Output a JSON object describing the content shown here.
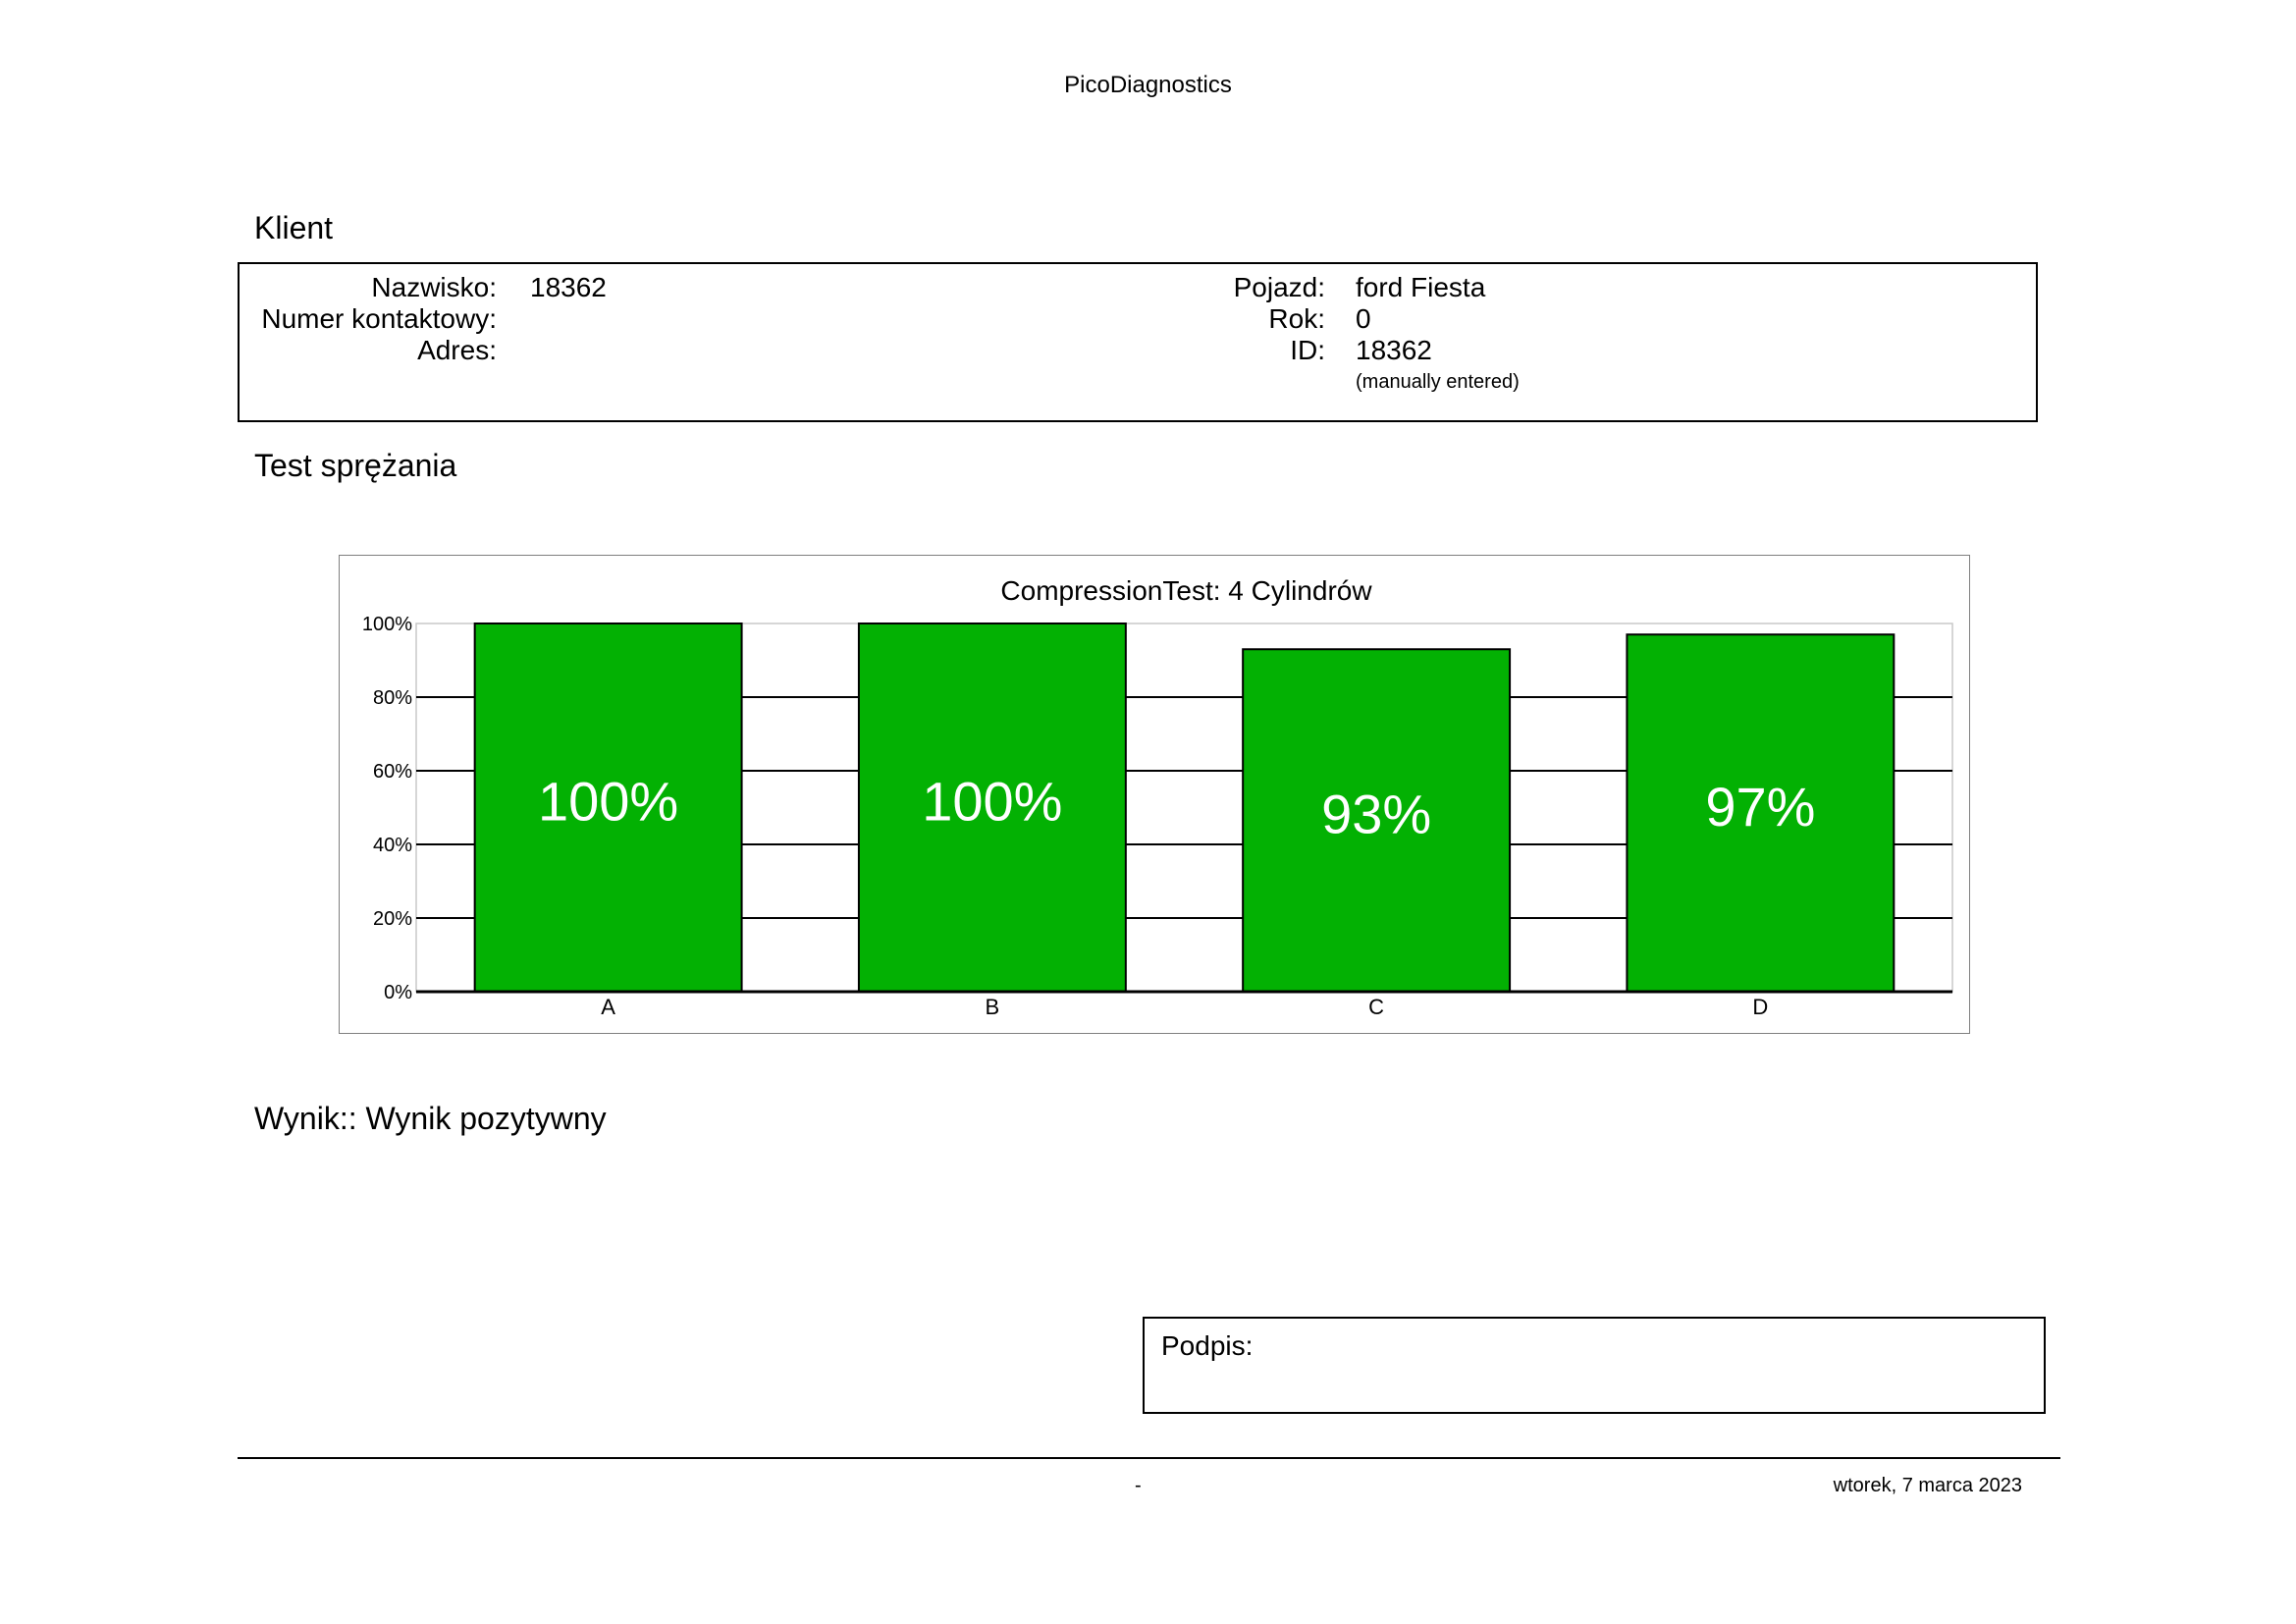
{
  "header": {
    "title": "PicoDiagnostics"
  },
  "client": {
    "heading": "Klient",
    "left_fields": [
      {
        "label": "Nazwisko:",
        "value": "18362"
      },
      {
        "label": "Numer kontaktowy:",
        "value": ""
      },
      {
        "label": "Adres:",
        "value": ""
      }
    ],
    "right_fields": [
      {
        "label": "Pojazd:",
        "value": "ford Fiesta"
      },
      {
        "label": "Rok:",
        "value": "0"
      },
      {
        "label": "ID:",
        "value": "18362"
      }
    ],
    "id_note": "(manually entered)"
  },
  "test": {
    "heading": "Test sprężania"
  },
  "chart_data": {
    "type": "bar",
    "title": "CompressionTest: 4 Cylindrów",
    "xlabel": "",
    "ylabel": "",
    "categories": [
      "A",
      "B",
      "C",
      "D"
    ],
    "values": [
      100,
      100,
      93,
      97
    ],
    "data_labels": [
      "100%",
      "100%",
      "93%",
      "97%"
    ],
    "ylim": [
      0,
      100
    ],
    "yticks": [
      0,
      20,
      40,
      60,
      80,
      100
    ],
    "ytick_labels": [
      "0%",
      "20%",
      "40%",
      "60%",
      "80%",
      "100%"
    ],
    "grid": true,
    "bar_color": "#03b103",
    "label_color": "#ffffff"
  },
  "result": {
    "text": "Wynik:: Wynik pozytywny"
  },
  "signature": {
    "label": "Podpis:"
  },
  "footer": {
    "center": "-",
    "date": "wtorek, 7 marca 2023"
  }
}
